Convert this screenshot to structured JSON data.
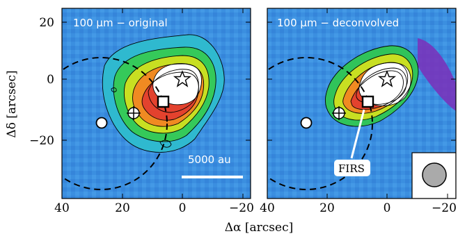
{
  "panels": [
    {
      "title": "100 μm − original",
      "scalebar_label": "5000 au"
    },
    {
      "title": "100 μm − deconvolved",
      "source_label": "FIRS"
    }
  ],
  "axes": {
    "xlabel": "Δα [arcsec]",
    "ylabel": "Δδ [arcsec]",
    "xticks": [
      "40",
      "20",
      "0",
      "−20"
    ],
    "yticks": [
      "20",
      "0",
      "−20"
    ]
  },
  "colors": {
    "background_map": "#3b8fe0",
    "contour_line": "#000000",
    "peak_saturated": "#ffffff",
    "emission_gradient": [
      "#22b9c4",
      "#2ec95a",
      "#b8e020",
      "#f2c21a",
      "#f07a22",
      "#e23a2e"
    ]
  },
  "markers": [
    "star-marker",
    "square-marker",
    "cross-circle-marker",
    "open-circle-marker",
    "dashed-circle",
    "beam-circle"
  ]
}
